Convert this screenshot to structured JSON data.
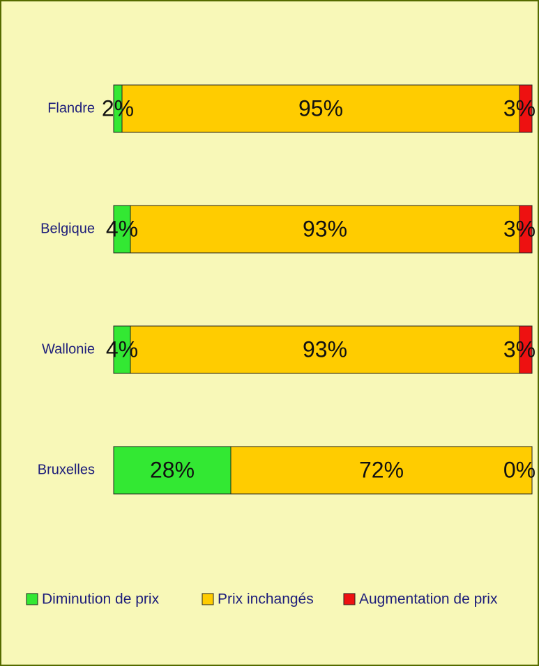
{
  "chart_data": {
    "type": "stacked_bar_horizontal",
    "categories": [
      "Flandre",
      "Belgique",
      "Wallonie",
      "Bruxelles"
    ],
    "xlim": [
      0,
      100
    ],
    "legend": "bottom",
    "series": [
      {
        "name": "Diminution de prix",
        "color": "#33e833",
        "values": [
          2,
          4,
          4,
          28
        ],
        "value_labels": [
          "2%",
          "4%",
          "4%",
          "28%"
        ]
      },
      {
        "name": "Prix inchangés",
        "color": "#ffcc00",
        "values": [
          95,
          93,
          93,
          72
        ],
        "value_labels": [
          "95%",
          "93%",
          "93%",
          "72%"
        ]
      },
      {
        "name": "Augmentation de prix",
        "color": "#ee1111",
        "values": [
          3,
          3,
          3,
          0
        ],
        "value_labels": [
          "3%",
          "3%",
          "3%",
          "0%"
        ]
      }
    ]
  }
}
